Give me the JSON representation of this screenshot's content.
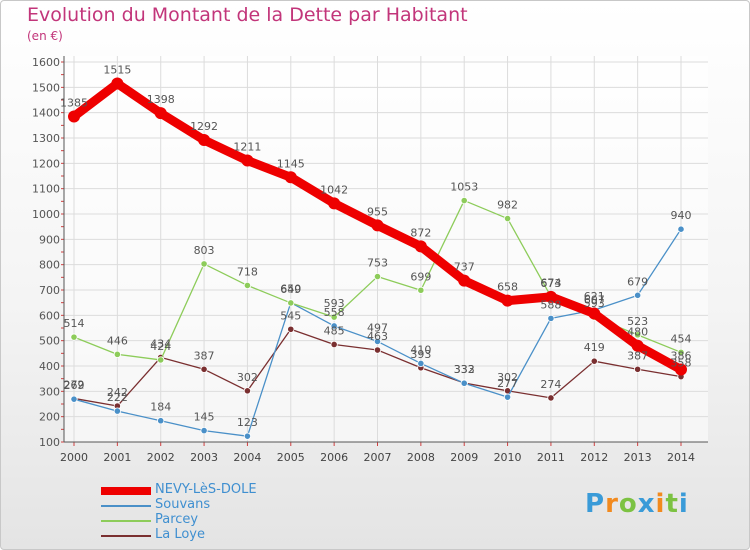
{
  "chart_data": {
    "type": "line",
    "title": "Evolution du Montant de la Dette par Habitant",
    "subtitle": "(en €)",
    "categories": [
      "2000",
      "2001",
      "2002",
      "2003",
      "2004",
      "2005",
      "2006",
      "2007",
      "2008",
      "2009",
      "2010",
      "2011",
      "2012",
      "2013",
      "2014"
    ],
    "ylim": [
      100,
      1600
    ],
    "yticks": [
      100,
      200,
      300,
      400,
      500,
      600,
      700,
      800,
      900,
      1000,
      1100,
      1200,
      1300,
      1400,
      1500,
      1600
    ],
    "grid": true,
    "legend_position": "bottom-left",
    "series": [
      {
        "name": "NEVY-LèS-DOLE",
        "color": "#ee0000",
        "values": [
          1385,
          1515,
          1398,
          1292,
          1211,
          1145,
          1042,
          955,
          872,
          737,
          658,
          673,
          607,
          480,
          386
        ]
      },
      {
        "name": "Souvans",
        "color": "#4a90c8",
        "values": [
          269,
          222,
          184,
          145,
          123,
          650,
          558,
          497,
          410,
          332,
          277,
          588,
          621,
          679,
          940
        ]
      },
      {
        "name": "Parcey",
        "color": "#8dcc5a",
        "values": [
          514,
          446,
          424,
          803,
          718,
          649,
          593,
          753,
          699,
          1053,
          982,
          674,
          593,
          523,
          454
        ]
      },
      {
        "name": "La Loye",
        "color": "#7a2f30",
        "values": [
          272,
          242,
          434,
          387,
          302,
          545,
          485,
          463,
          393,
          333,
          302,
          274,
          419,
          387,
          358
        ]
      }
    ]
  },
  "legend": {
    "items": [
      {
        "label": "NEVY-LèS-DOLE",
        "color": "#ee0000"
      },
      {
        "label": "Souvans",
        "color": "#4a90c8"
      },
      {
        "label": "Parcey",
        "color": "#8dcc5a"
      },
      {
        "label": "La Loye",
        "color": "#7a2f30"
      }
    ]
  },
  "branding": {
    "logo_text": "Proxiti",
    "letter_colors": [
      "#3a9bd8",
      "#f28a1e",
      "#7cc242",
      "#3a9bd8",
      "#f28a1e",
      "#7cc242",
      "#3a9bd8"
    ]
  }
}
